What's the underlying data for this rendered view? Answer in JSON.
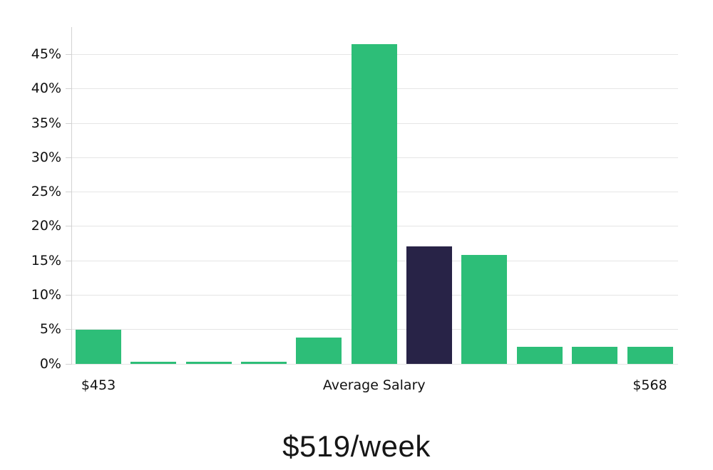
{
  "chart_data": {
    "type": "bar",
    "title": "$519/week",
    "categories": [
      "$453",
      "",
      "",
      "",
      "",
      "Average Salary",
      "",
      "",
      "",
      "",
      "$568"
    ],
    "values": [
      5.0,
      0.3,
      0.3,
      0.3,
      3.8,
      46.5,
      17.1,
      15.9,
      2.5,
      2.5,
      2.5
    ],
    "xlabel": "",
    "ylabel": "",
    "ylim": [
      0,
      49
    ],
    "y_tick_values": [
      0,
      5,
      10,
      15,
      20,
      25,
      30,
      35,
      40,
      45
    ],
    "y_tick_labels": [
      "0%",
      "5%",
      "10%",
      "15%",
      "20%",
      "25%",
      "30%",
      "35%",
      "40%",
      "45%"
    ],
    "grid": true,
    "legend": "none",
    "bar_color": "#2dbe78",
    "highlight_index": 6,
    "highlight_color": "#282347",
    "gridline_color": "#e5e5e5",
    "axis_color": "#d2d2d2",
    "text_color": "#111111"
  }
}
